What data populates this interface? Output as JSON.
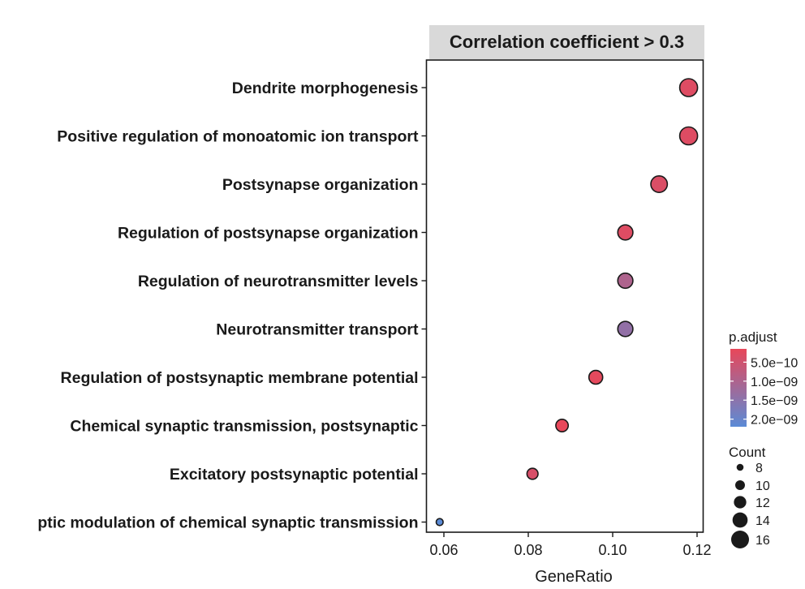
{
  "chart_data": {
    "type": "scatter",
    "facet_title": "Correlation coefficient > 0.3",
    "xlabel": "GeneRatio",
    "ylabel": "",
    "xlim": [
      0.055,
      0.1225
    ],
    "x_ticks": [
      0.06,
      0.08,
      0.1,
      0.12
    ],
    "x_tick_labels": [
      "0.06",
      "0.08",
      "0.10",
      "0.12"
    ],
    "grid": false,
    "legend_position": "right",
    "categories": [
      "Dendrite morphogenesis",
      "Positive regulation of monoatomic ion transport",
      "Postsynapse organization",
      "Regulation of postsynapse organization",
      "Regulation of neurotransmitter levels",
      "Neurotransmitter transport",
      "Regulation of postsynaptic membrane potential",
      "Chemical synaptic transmission, postsynaptic",
      "Excitatory postsynaptic potential",
      "ptic modulation of chemical synaptic transmission"
    ],
    "gene_ratio": [
      0.118,
      0.118,
      0.111,
      0.103,
      0.103,
      0.103,
      0.096,
      0.088,
      0.081,
      0.059
    ],
    "count": [
      16,
      16,
      15,
      14,
      14,
      14,
      13,
      12,
      11,
      8
    ],
    "p_adjust": [
      3e-10,
      3e-10,
      3.5e-10,
      3e-10,
      1e-09,
      1.4e-09,
      2e-10,
      1.5e-10,
      4e-10,
      2.2e-09
    ],
    "color_legend": {
      "title": "p.adjust",
      "tick_values": [
        5e-10,
        1e-09,
        1.5e-09,
        2e-09
      ],
      "tick_labels": [
        "5.0e−10",
        "1.0e−09",
        "1.5e−09",
        "2.0e−09"
      ],
      "range": [
        1.5e-10,
        2.2e-09
      ],
      "low_color": "#e8475a",
      "high_color": "#5b8bd6"
    },
    "size_legend": {
      "title": "Count",
      "values": [
        8,
        10,
        12,
        14,
        16
      ],
      "labels": [
        "8",
        "10",
        "12",
        "14",
        "16"
      ]
    }
  }
}
